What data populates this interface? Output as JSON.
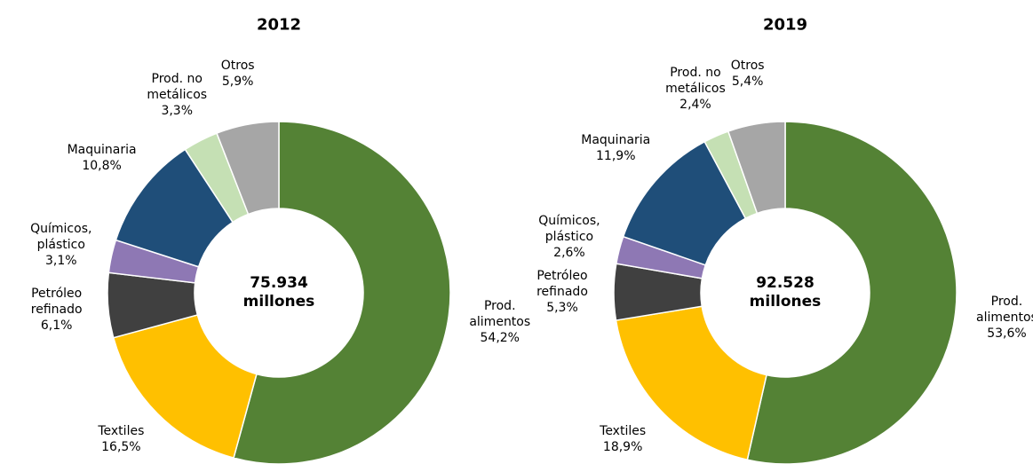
{
  "chart_data": [
    {
      "type": "donut",
      "title": "2012",
      "center_label": "75.934 millones",
      "categories": [
        "Prod. alimentos",
        "Textiles",
        "Petróleo refinado",
        "Químicos, plástico",
        "Maquinaria",
        "Prod. no metálicos",
        "Otros"
      ],
      "values": [
        54.2,
        16.5,
        6.1,
        3.1,
        10.8,
        3.3,
        5.9
      ],
      "value_labels": [
        "54,2%",
        "16,5%",
        "6,1%",
        "3,1%",
        "10,8%",
        "3,3%",
        "5,9%"
      ],
      "colors": [
        "#548235",
        "#ffc000",
        "#404040",
        "#8e78b4",
        "#1f4e79",
        "#c5e0b4",
        "#a6a6a6"
      ]
    },
    {
      "type": "donut",
      "title": "2019",
      "center_label": "92.528 millones",
      "categories": [
        "Prod. alimentos",
        "Textiles",
        "Petróleo refinado",
        "Químicos, plástico",
        "Maquinaria",
        "Prod. no metálicos",
        "Otros"
      ],
      "values": [
        53.6,
        18.9,
        5.3,
        2.6,
        11.9,
        2.4,
        5.4
      ],
      "value_labels": [
        "53,6%",
        "18,9%",
        "5,3%",
        "2,6%",
        "11,9%",
        "2,4%",
        "5,4%"
      ],
      "colors": [
        "#548235",
        "#ffc000",
        "#404040",
        "#8e78b4",
        "#1f4e79",
        "#c5e0b4",
        "#a6a6a6"
      ]
    }
  ]
}
